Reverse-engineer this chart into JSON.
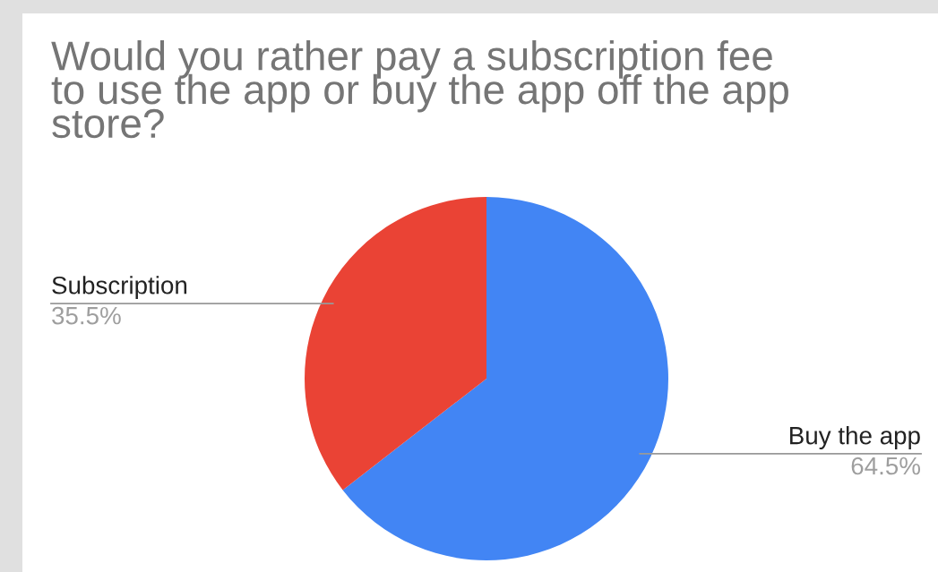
{
  "chart_data": {
    "type": "pie",
    "title": "Would you rather pay a subscription fee\nto use the app or buy the app off the app\nstore?",
    "categories": [
      "Buy the app",
      "Subscription"
    ],
    "values": [
      64.5,
      35.5
    ],
    "colors": [
      "#4285f4",
      "#ea4335"
    ],
    "value_labels": [
      "64.5%",
      "35.5%"
    ],
    "legend": false
  }
}
